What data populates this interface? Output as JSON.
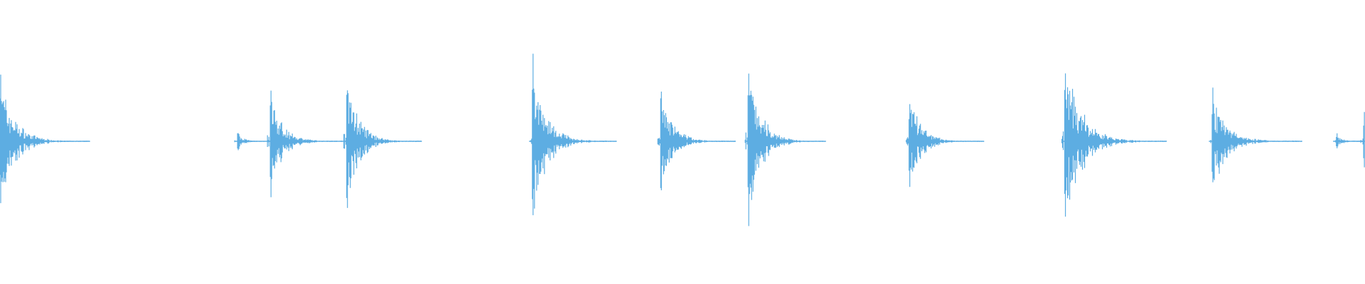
{
  "chart_data": {
    "type": "waveform",
    "color": "#5DADE2",
    "background": "#FFFFFF",
    "grid": false,
    "axes_visible": false,
    "amplitude_range": [
      -1,
      1
    ],
    "bursts": [
      {
        "time_fraction": 0.0,
        "peak": 0.43,
        "decay": 0.03
      },
      {
        "time_fraction": 0.174,
        "peak": 0.06,
        "decay": 0.012
      },
      {
        "time_fraction": 0.198,
        "peak": 0.33,
        "decay": 0.025
      },
      {
        "time_fraction": 0.254,
        "peak": 0.44,
        "decay": 0.025
      },
      {
        "time_fraction": 0.39,
        "peak": 0.53,
        "decay": 0.028
      },
      {
        "time_fraction": 0.484,
        "peak": 0.33,
        "decay": 0.025
      },
      {
        "time_fraction": 0.548,
        "peak": 0.52,
        "decay": 0.026
      },
      {
        "time_fraction": 0.666,
        "peak": 0.3,
        "decay": 0.025
      },
      {
        "time_fraction": 0.78,
        "peak": 0.55,
        "decay": 0.034
      },
      {
        "time_fraction": 0.888,
        "peak": 0.33,
        "decay": 0.03
      },
      {
        "time_fraction": 0.979,
        "peak": 0.05,
        "decay": 0.012
      },
      {
        "time_fraction": 0.999,
        "peak": 0.18,
        "decay": 0.01
      }
    ]
  }
}
